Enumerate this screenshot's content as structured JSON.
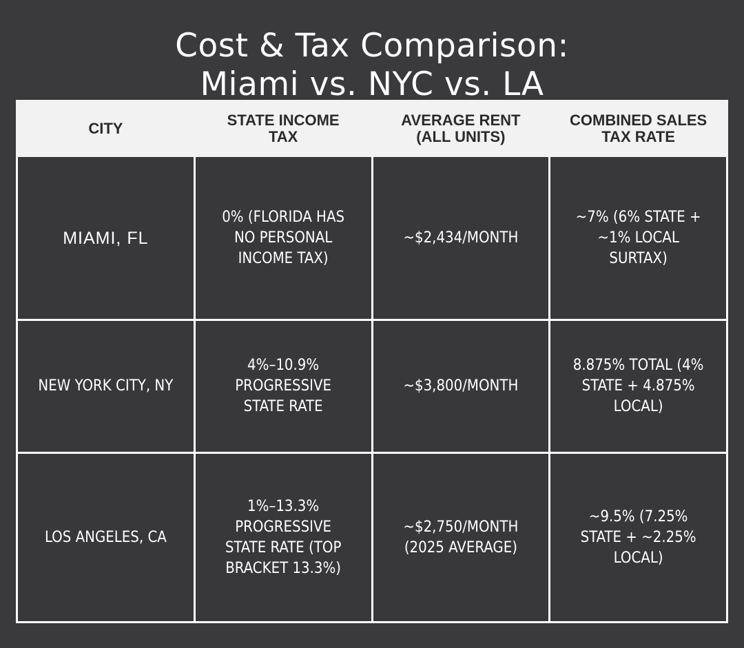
{
  "title": {
    "line1": "Cost & Tax Comparison:",
    "line2": "Miami vs. NYC vs. LA"
  },
  "table": {
    "headers": [
      "CITY",
      "STATE INCOME TAX",
      "AVERAGE RENT (ALL UNITS)",
      "COMBINED SALES TAX RATE"
    ],
    "rows": [
      {
        "city": "MIAMI, FL",
        "state_income_tax": "0% (FLORIDA HAS NO PERSONAL INCOME TAX)",
        "average_rent": "~$2,434/MONTH",
        "sales_tax": "~7% (6% STATE + ~1% LOCAL SURTAX)"
      },
      {
        "city": "NEW YORK CITY, NY",
        "state_income_tax": "4%–10.9% PROGRESSIVE STATE RATE",
        "average_rent": "~$3,800/MONTH",
        "sales_tax": "8.875% TOTAL (4% STATE + 4.875% LOCAL)"
      },
      {
        "city": "LOS ANGELES, CA",
        "state_income_tax": "1%–13.3% PROGRESSIVE STATE RATE (TOP BRACKET 13.3%)",
        "average_rent": "~$2,750/MONTH (2025 AVERAGE)",
        "sales_tax": "~9.5% (7.25% STATE + ~2.25% LOCAL)"
      }
    ]
  }
}
